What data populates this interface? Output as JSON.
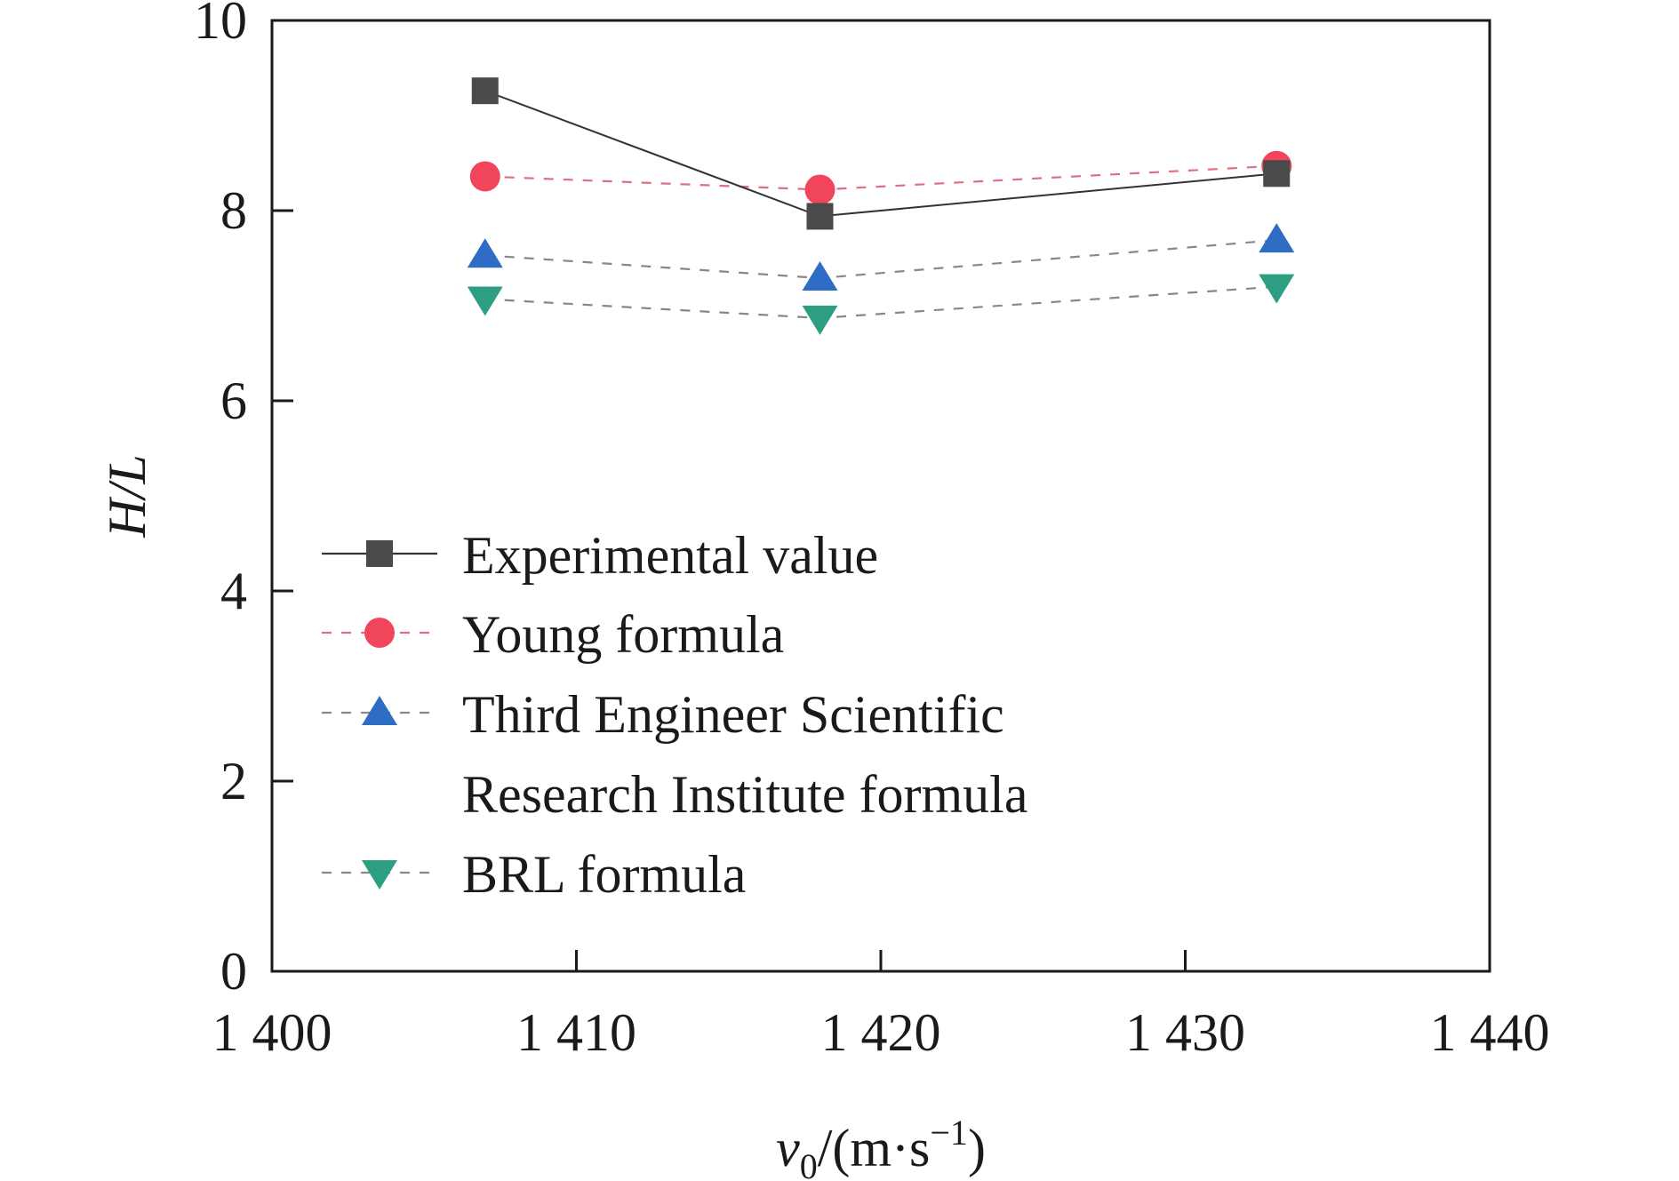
{
  "chart_data": {
    "type": "line",
    "title": "",
    "xlabel": {
      "base": "v",
      "subscript": "0",
      "rest_before_sup": "/(m·s",
      "superscript": "−1",
      "rest_after_sup": ")"
    },
    "ylabel": "H/L",
    "xlim": [
      1400,
      1440
    ],
    "ylim": [
      0,
      10
    ],
    "x_ticks": [
      1400,
      1410,
      1420,
      1430,
      1440
    ],
    "x_tick_labels": [
      "1 400",
      "1 410",
      "1 420",
      "1 430",
      "1 440"
    ],
    "y_ticks": [
      0,
      2,
      4,
      6,
      8,
      10
    ],
    "y_tick_labels": [
      "0",
      "2",
      "4",
      "6",
      "8",
      "10"
    ],
    "grid": false,
    "legend_position": "center-left",
    "x": [
      1407.0,
      1418.0,
      1433.0
    ],
    "series": [
      {
        "name": "Experimental value",
        "values": [
          9.26,
          7.94,
          8.39
        ],
        "marker": "square",
        "line": "solid",
        "color": "#4a4a4a",
        "line_color": "#333333"
      },
      {
        "name": "Young formula",
        "values": [
          8.36,
          8.22,
          8.47
        ],
        "marker": "circle",
        "line": "dashed",
        "color": "#f0455a",
        "line_color": "#e0707f"
      },
      {
        "name": "Third Engineer Scientific Research Institute formula",
        "name_lines": [
          "Third Engineer Scientific",
          "Research Institute formula"
        ],
        "values": [
          7.53,
          7.29,
          7.69
        ],
        "marker": "triangle-up",
        "line": "dashed",
        "color": "#2f6cc4",
        "line_color": "#888888"
      },
      {
        "name": "BRL formula",
        "values": [
          7.07,
          6.87,
          7.2
        ],
        "marker": "triangle-down",
        "line": "dashed",
        "color": "#2e9e82",
        "line_color": "#888888"
      }
    ]
  }
}
